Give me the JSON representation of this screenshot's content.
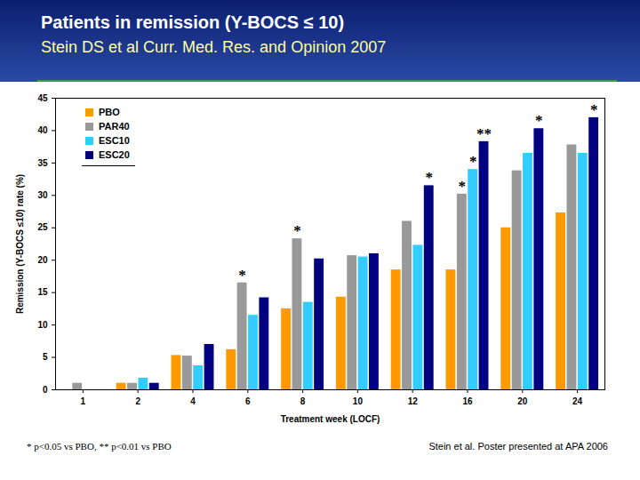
{
  "chart_data": {
    "type": "bar",
    "title": "Patients in remission (Y-BOCS ≤ 10)",
    "subtitle": "Stein DS et al Curr. Med. Res. and Opinion 2007",
    "x_label": "Treatment week (LOCF)",
    "y_label": "Remission (Y-BOCS ≤10) rate (%)",
    "categories": [
      "1",
      "2",
      "4",
      "6",
      "8",
      "10",
      "12",
      "16",
      "20",
      "24"
    ],
    "series": [
      {
        "name": "PBO",
        "color": "#ff9900",
        "values": [
          0,
          1,
          5.3,
          6.2,
          12.5,
          14.3,
          18.5,
          18.5,
          25,
          27.3
        ]
      },
      {
        "name": "PAR40",
        "color": "#999999",
        "values": [
          1,
          1,
          5.2,
          16.5,
          23.3,
          20.7,
          26,
          30.2,
          33.8,
          37.8
        ]
      },
      {
        "name": "ESC10",
        "color": "#33ccff",
        "values": [
          0,
          1.8,
          3.7,
          11.5,
          13.5,
          20.5,
          22.3,
          34,
          36.5,
          36.5
        ]
      },
      {
        "name": "ESC20",
        "color": "#000080",
        "values": [
          0,
          1,
          7,
          14.2,
          20.2,
          21,
          31.5,
          38.3,
          40.3,
          42
        ]
      }
    ],
    "ylim": [
      0,
      45
    ],
    "yticks": [
      0,
      5,
      10,
      15,
      20,
      25,
      30,
      35,
      40,
      45
    ],
    "grid": false,
    "legend": "top-left",
    "annotations": [
      {
        "category": "6",
        "series": "PAR40",
        "text": "*"
      },
      {
        "category": "8",
        "series": "PAR40",
        "text": "*"
      },
      {
        "category": "12",
        "series": "ESC20",
        "text": "*"
      },
      {
        "category": "16",
        "series": "PAR40",
        "text": "*"
      },
      {
        "category": "16",
        "series": "ESC10",
        "text": "*"
      },
      {
        "category": "16",
        "series": "ESC20",
        "text": "**"
      },
      {
        "category": "20",
        "series": "ESC20",
        "text": "*"
      },
      {
        "category": "24",
        "series": "ESC20",
        "text": "*"
      }
    ],
    "footnote": "* p<0.05 vs PBO, ** p<0.01 vs PBO",
    "source": "Stein et al. Poster presented at APA 2006"
  }
}
